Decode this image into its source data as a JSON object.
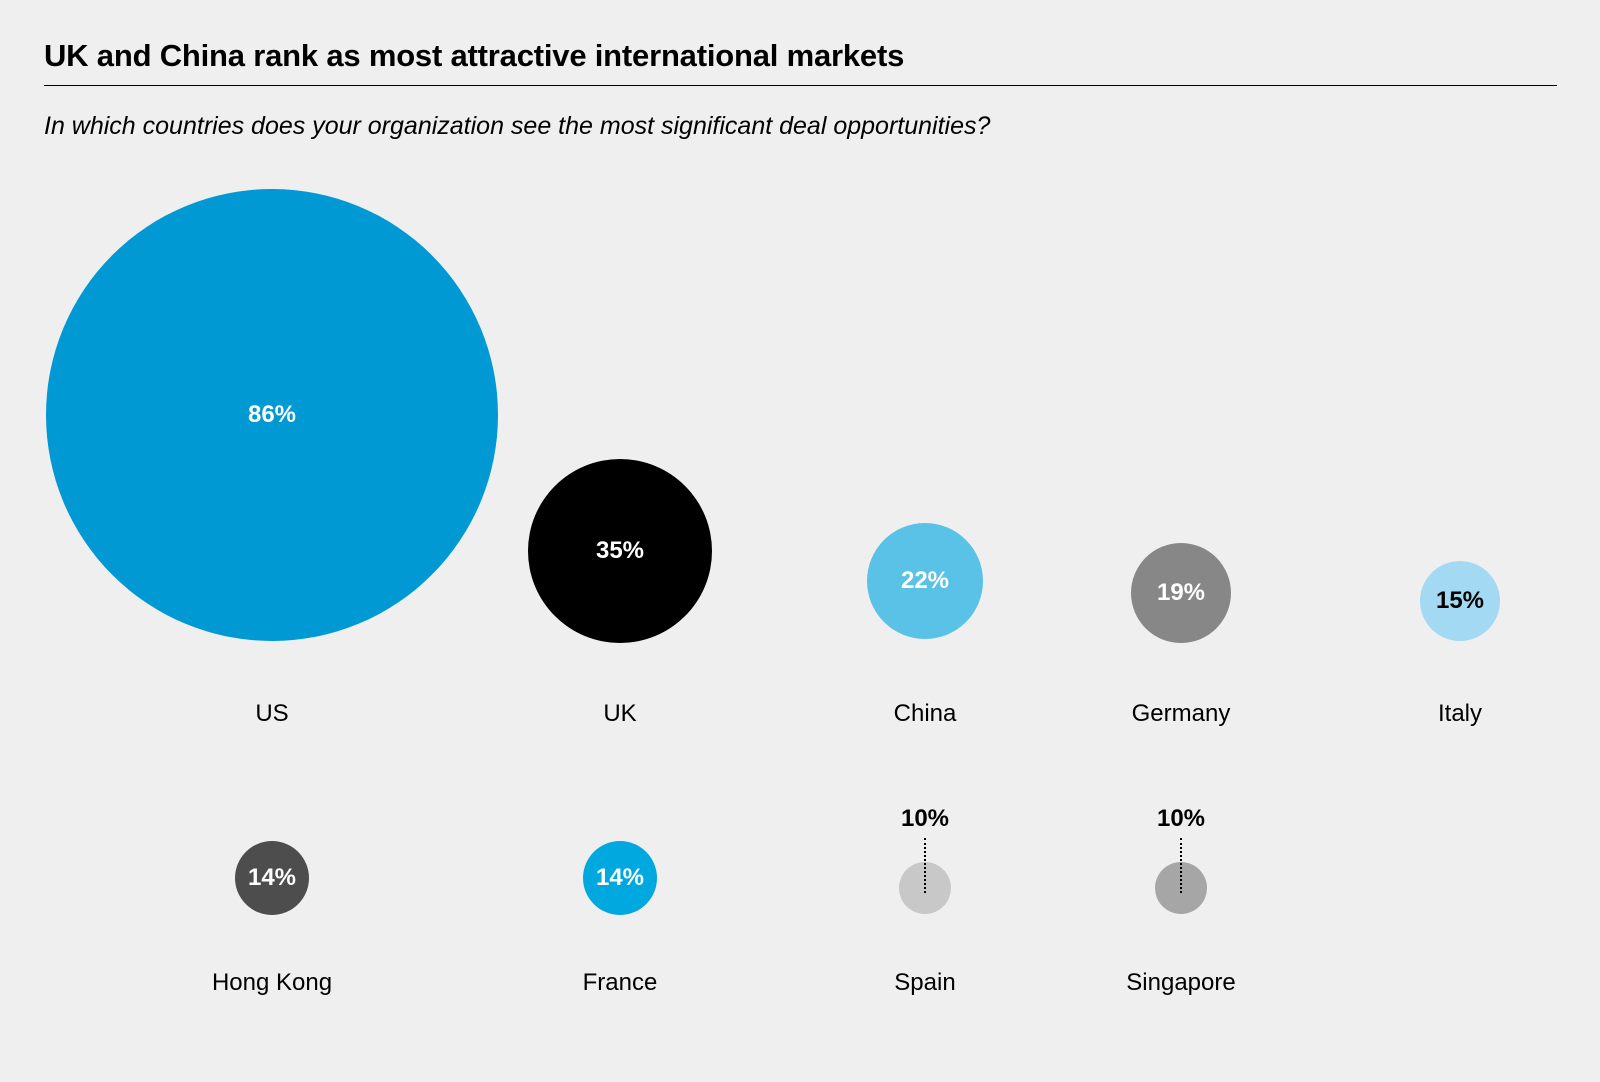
{
  "chart_data": {
    "type": "bubble",
    "title": "UK and China rank as most attractive international markets",
    "subtitle": "In which countries does your organization see the most significant deal opportunities?",
    "unit": "%",
    "items": [
      {
        "country": "US",
        "value": 86,
        "label": "86%",
        "color": "#0099d4",
        "text_color": "#ffffff"
      },
      {
        "country": "UK",
        "value": 35,
        "label": "35%",
        "color": "#000000",
        "text_color": "#ffffff"
      },
      {
        "country": "China",
        "value": 22,
        "label": "22%",
        "color": "#5bc2e7",
        "text_color": "#ffffff"
      },
      {
        "country": "Germany",
        "value": 19,
        "label": "19%",
        "color": "#878787",
        "text_color": "#ffffff"
      },
      {
        "country": "Italy",
        "value": 15,
        "label": "15%",
        "color": "#a3d9f2",
        "text_color": "#000000"
      },
      {
        "country": "Hong Kong",
        "value": 14,
        "label": "14%",
        "color": "#4d4d4d",
        "text_color": "#ffffff"
      },
      {
        "country": "France",
        "value": 14,
        "label": "14%",
        "color": "#00a8e0",
        "text_color": "#ffffff"
      },
      {
        "country": "Spain",
        "value": 10,
        "label": "10%",
        "color": "#c8c8c8",
        "text_color": "#000000"
      },
      {
        "country": "Singapore",
        "value": 10,
        "label": "10%",
        "color": "#a6a6a6",
        "text_color": "#000000"
      }
    ]
  }
}
